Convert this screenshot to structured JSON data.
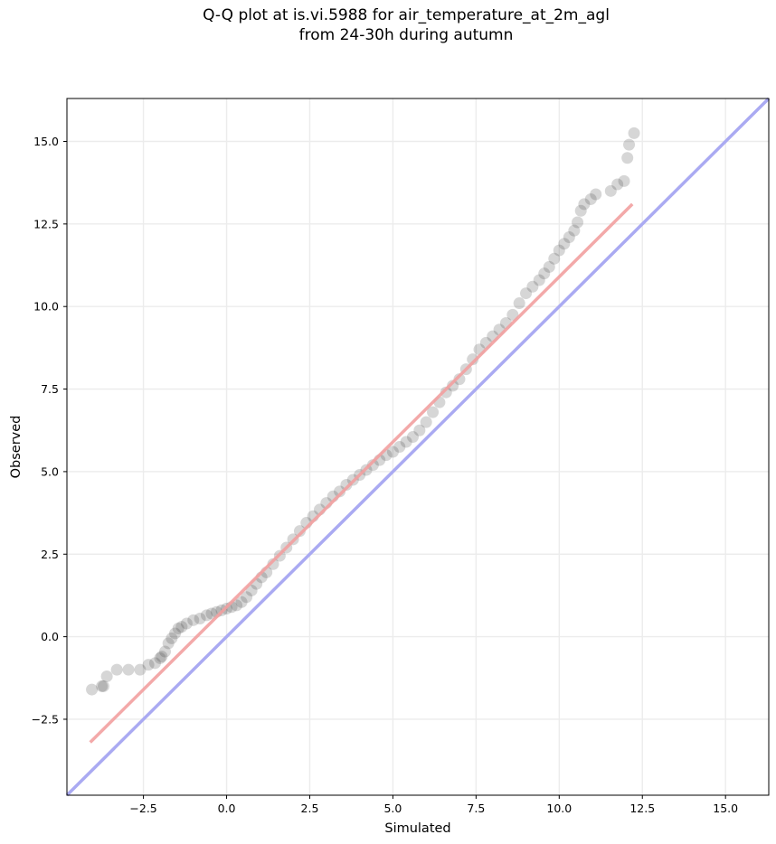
{
  "chart_data": {
    "type": "scatter",
    "title_lines": [
      "Q-Q plot at is.vi.5988 for air_temperature_at_2m_agl",
      "from 24-30h during autumn"
    ],
    "xlabel": "Simulated",
    "ylabel": "Observed",
    "xlim": [
      -4.8,
      16.3
    ],
    "ylim": [
      -4.8,
      16.3
    ],
    "xticks": [
      -2.5,
      0.0,
      2.5,
      5.0,
      7.5,
      10.0,
      12.5,
      15.0
    ],
    "yticks": [
      -2.5,
      0.0,
      2.5,
      5.0,
      7.5,
      10.0,
      12.5,
      15.0
    ],
    "xtick_labels": [
      "−2.5",
      "0.0",
      "2.5",
      "5.0",
      "7.5",
      "10.0",
      "12.5",
      "15.0"
    ],
    "ytick_labels": [
      "−2.5",
      "0.0",
      "2.5",
      "5.0",
      "7.5",
      "10.0",
      "12.5",
      "15.0"
    ],
    "grid": true,
    "series": [
      {
        "kind": "scatter",
        "color": "#333333",
        "points": [
          [
            -4.05,
            -1.6
          ],
          [
            -3.75,
            -1.5
          ],
          [
            -3.7,
            -1.5
          ],
          [
            -3.6,
            -1.2
          ],
          [
            -3.3,
            -1.0
          ],
          [
            -2.95,
            -1.0
          ],
          [
            -2.6,
            -1.0
          ],
          [
            -2.35,
            -0.85
          ],
          [
            -2.15,
            -0.8
          ],
          [
            -2.0,
            -0.65
          ],
          [
            -1.95,
            -0.6
          ],
          [
            -1.85,
            -0.45
          ],
          [
            -1.75,
            -0.2
          ],
          [
            -1.65,
            -0.05
          ],
          [
            -1.55,
            0.1
          ],
          [
            -1.45,
            0.25
          ],
          [
            -1.35,
            0.3
          ],
          [
            -1.2,
            0.4
          ],
          [
            -1.0,
            0.5
          ],
          [
            -0.8,
            0.55
          ],
          [
            -0.6,
            0.65
          ],
          [
            -0.45,
            0.7
          ],
          [
            -0.3,
            0.75
          ],
          [
            -0.15,
            0.8
          ],
          [
            0.0,
            0.85
          ],
          [
            0.15,
            0.9
          ],
          [
            0.3,
            0.95
          ],
          [
            0.45,
            1.05
          ],
          [
            0.6,
            1.2
          ],
          [
            0.75,
            1.4
          ],
          [
            0.9,
            1.6
          ],
          [
            1.05,
            1.8
          ],
          [
            1.2,
            1.95
          ],
          [
            1.4,
            2.2
          ],
          [
            1.6,
            2.45
          ],
          [
            1.8,
            2.7
          ],
          [
            2.0,
            2.95
          ],
          [
            2.2,
            3.2
          ],
          [
            2.4,
            3.45
          ],
          [
            2.6,
            3.65
          ],
          [
            2.8,
            3.85
          ],
          [
            3.0,
            4.05
          ],
          [
            3.2,
            4.25
          ],
          [
            3.4,
            4.4
          ],
          [
            3.6,
            4.6
          ],
          [
            3.8,
            4.75
          ],
          [
            4.0,
            4.9
          ],
          [
            4.2,
            5.05
          ],
          [
            4.4,
            5.2
          ],
          [
            4.6,
            5.35
          ],
          [
            4.8,
            5.5
          ],
          [
            5.0,
            5.6
          ],
          [
            5.2,
            5.75
          ],
          [
            5.4,
            5.9
          ],
          [
            5.6,
            6.05
          ],
          [
            5.8,
            6.25
          ],
          [
            6.0,
            6.5
          ],
          [
            6.2,
            6.8
          ],
          [
            6.4,
            7.1
          ],
          [
            6.6,
            7.4
          ],
          [
            6.8,
            7.6
          ],
          [
            7.0,
            7.8
          ],
          [
            7.2,
            8.1
          ],
          [
            7.4,
            8.4
          ],
          [
            7.6,
            8.7
          ],
          [
            7.8,
            8.9
          ],
          [
            8.0,
            9.1
          ],
          [
            8.2,
            9.3
          ],
          [
            8.4,
            9.5
          ],
          [
            8.6,
            9.75
          ],
          [
            8.8,
            10.1
          ],
          [
            9.0,
            10.4
          ],
          [
            9.2,
            10.6
          ],
          [
            9.4,
            10.8
          ],
          [
            9.55,
            11.0
          ],
          [
            9.7,
            11.2
          ],
          [
            9.85,
            11.45
          ],
          [
            10.0,
            11.7
          ],
          [
            10.15,
            11.9
          ],
          [
            10.3,
            12.1
          ],
          [
            10.45,
            12.3
          ],
          [
            10.55,
            12.55
          ],
          [
            10.65,
            12.9
          ],
          [
            10.75,
            13.1
          ],
          [
            10.95,
            13.25
          ],
          [
            11.1,
            13.4
          ],
          [
            11.55,
            13.5
          ],
          [
            11.75,
            13.7
          ],
          [
            11.95,
            13.8
          ],
          [
            12.05,
            14.5
          ],
          [
            12.1,
            14.9
          ],
          [
            12.25,
            15.25
          ]
        ]
      },
      {
        "kind": "line",
        "color": "#f2a0a0",
        "points": [
          [
            -4.1,
            -3.2
          ],
          [
            12.2,
            13.1
          ]
        ]
      },
      {
        "kind": "line",
        "color": "#aaaaf2",
        "points": [
          [
            -4.8,
            -4.8
          ],
          [
            16.3,
            16.3
          ]
        ]
      }
    ]
  }
}
